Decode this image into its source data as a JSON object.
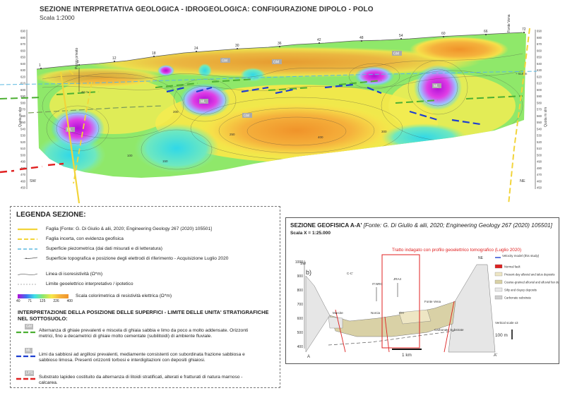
{
  "section": {
    "title": "SEZIONE INTERPRETATIVA GEOLOGICA - IDROGEOLOGICA: CONFIGURAZIONE DIPOLO - POLO",
    "scale": "Scala 1:2000",
    "left_label": "SW",
    "right_label": "NE",
    "axis_label": "Quota m slm",
    "elevation_ticks": [
      "690",
      "680",
      "670",
      "660",
      "650",
      "640",
      "630",
      "620",
      "610",
      "600",
      "590",
      "580",
      "570",
      "560",
      "550",
      "540",
      "530",
      "520",
      "510",
      "500",
      "490",
      "480",
      "470",
      "460",
      "450"
    ],
    "electrodes": [
      "1",
      "6",
      "12",
      "18",
      "24",
      "30",
      "36",
      "42",
      "48",
      "54",
      "60",
      "66",
      "72"
    ],
    "well_labels": [
      "Pozzo privato",
      "Fonte Vena"
    ],
    "depth_mark": "42 m",
    "piezo_label": "~ 618 m",
    "unit_tags": {
      "gm": "GM",
      "ml": "ML"
    },
    "contours": [
      "100",
      "150",
      "200",
      "250",
      "300",
      "400"
    ]
  },
  "legend": {
    "title": "LEGENDA SEZIONE:",
    "items": [
      {
        "text": "Faglia [Fonte: G. Di Giulio & alii, 2020; Engineering Geology 267 (2020) 105501]",
        "color": "#f2d43a",
        "style": "solid"
      },
      {
        "text": "Faglia incerta, con evidenza geofisica",
        "color": "#f2d43a",
        "style": "dashed"
      },
      {
        "text": "Superficie piezometrica (dai dati misurati e di letteratura)",
        "color": "#5bb8e0",
        "style": "dashed"
      },
      {
        "text": "Superficie topografica e posizione degli elettrodi di riferimento - Acquisizione Luglio 2020",
        "color": "#555",
        "style": "topo"
      },
      {
        "text": "Linea di isoresistività (Ω*m)",
        "color": "#555",
        "style": "iso"
      },
      {
        "text": "Limite geoelettrico interpretativo / ipotetico",
        "color": "#999",
        "style": "dotted"
      }
    ],
    "colorbar_label": "Scala colorimetrica di resistività elettrica (Ω*m)",
    "colorbar_ticks": [
      "40",
      "71",
      "125",
      "226",
      "400"
    ],
    "interp_title": "INTERPRETAZIONE DELLA POSIZIONE DELLE SUPERFICI - LIMITE DELLE UNITA' STRATIGRAFICHE NEL SOTTOSUOLO:",
    "units": [
      {
        "tag": "GM",
        "color": "#4caf32",
        "text": "Alternanza di ghiaie prevalenti e miscela di ghiaia sabbia e limo da poco a molto addensate. Orizzonti metrici, fino a decametrici di ghiaie molto cementate (subilitoidi) di ambiente fluviale."
      },
      {
        "tag": "ML",
        "color": "#1e3fd0",
        "text": "Limi da sabbiosi ad argillosi prevalenti, mediamente consistenti con subordinata frazione sabbiosa e sabbioso limosa. Presenti orizzonti torbosi e interdigitazioni con depositi ghiaiosi."
      },
      {
        "tag": "LPS",
        "color": "#e02020",
        "text": "Substrato lapideo costituito da alternanza di litoidi stratificati, alterati e fratturati di natura marnoso - calcarea."
      }
    ]
  },
  "geo": {
    "title_bold": "SEZIONE GEOFISICA A-A'",
    "title_ref": " [Fonte: G. Di Giulio & alii, 2020; Engineering Geology 267 (2020) 105501]",
    "scale": "Scala X = 1:25.000",
    "red_note": "Tratto indagato con profilo geoelettrico tomografico (Luglio 2020)",
    "panel_label": "b)",
    "sw": "SW",
    "ne": "NE",
    "a_left": "A",
    "a_right": "A'",
    "y_ticks": [
      "1000",
      "900",
      "800",
      "700",
      "600",
      "500",
      "400"
    ],
    "sites": [
      "C-C'",
      "IT.NRC",
      "JRA4",
      "Marcite",
      "Norcia",
      "Fonte Vena",
      "OH"
    ],
    "substrate_label": "Carbonate Substrate",
    "velocity_label": "Velocity model (this study)",
    "legend": [
      {
        "text": "Normal fault",
        "color": "#d22"
      },
      {
        "text": "Present-day alluvial and talus deposits",
        "color": "#eee6c4"
      },
      {
        "text": "Coarse-grained alluvial and alluvial fan deposits",
        "color": "#d9d1a6"
      },
      {
        "text": "Silty and clayey deposits",
        "color": "#e8e8e8"
      },
      {
        "text": "Carbonate substrate",
        "color": "#cfcfcf"
      }
    ],
    "vscale_label": "Vertical scale x3",
    "vscale_value": "100 m",
    "hscale_value": "1 km"
  }
}
